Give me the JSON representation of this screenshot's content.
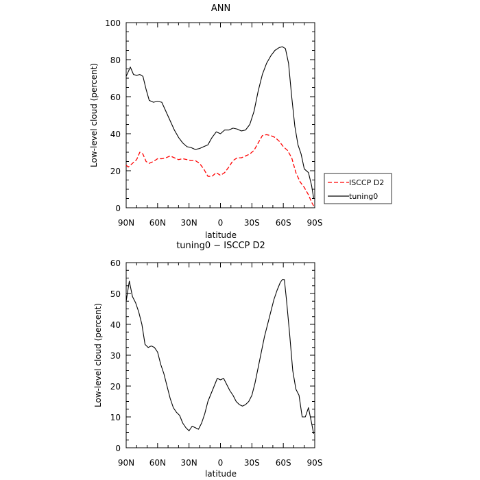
{
  "chart_data": [
    {
      "type": "line",
      "title": "ANN",
      "xlabel": "latitude",
      "ylabel": "Low-level cloud (percent)",
      "x_tick_labels": [
        "90N",
        "60N",
        "30N",
        "0",
        "30S",
        "60S",
        "90S"
      ],
      "xlim": [
        90,
        -90
      ],
      "ylim": [
        0,
        100
      ],
      "y_ticks": [
        0,
        20,
        40,
        60,
        80,
        100
      ],
      "legend_placement": "right",
      "series": [
        {
          "name": "ISCCP D2",
          "color": "#ff0000",
          "style": "dashed",
          "x": [
            90,
            88,
            84,
            80,
            77,
            74,
            71,
            68,
            64,
            60,
            56,
            52,
            48,
            44,
            40,
            36,
            32,
            28,
            24,
            20,
            16,
            12,
            8,
            4,
            0,
            -4,
            -8,
            -12,
            -16,
            -20,
            -24,
            -28,
            -32,
            -36,
            -40,
            -44,
            -48,
            -52,
            -56,
            -60,
            -64,
            -68,
            -72,
            -76,
            -80,
            -84,
            -87,
            -89
          ],
          "y": [
            23,
            22,
            24,
            26,
            30,
            29,
            25,
            24,
            25,
            26.5,
            26.5,
            27,
            28,
            27,
            26,
            26.5,
            26,
            25.5,
            25.5,
            24,
            21,
            17,
            17,
            19,
            17.5,
            19,
            22,
            25.5,
            27,
            27,
            28,
            29,
            31,
            35,
            39,
            39.5,
            39,
            38,
            36,
            33,
            31,
            27,
            19,
            14,
            11,
            7,
            3,
            1
          ]
        },
        {
          "name": "tuning0",
          "color": "#000000",
          "style": "solid",
          "x": [
            90,
            86,
            83,
            80,
            77,
            74,
            71,
            68,
            64,
            60,
            56,
            52,
            48,
            44,
            40,
            36,
            32,
            28,
            24,
            20,
            16,
            12,
            8,
            4,
            0,
            -4,
            -8,
            -12,
            -16,
            -20,
            -24,
            -28,
            -32,
            -36,
            -40,
            -44,
            -48,
            -52,
            -56,
            -59,
            -62,
            -65,
            -68,
            -71,
            -74,
            -77,
            -80,
            -84,
            -87,
            -89
          ],
          "y": [
            71,
            76,
            72,
            71.5,
            72,
            71,
            64,
            58,
            57,
            57.5,
            57,
            52,
            47,
            42,
            38,
            35,
            33,
            32.5,
            31.5,
            32,
            33,
            34,
            38,
            41,
            40,
            42,
            42,
            43,
            42.5,
            41.5,
            42,
            45,
            52,
            63,
            72,
            78,
            82,
            85,
            86.5,
            87,
            86,
            78,
            60,
            44,
            34,
            29,
            21,
            19,
            12,
            5
          ]
        }
      ]
    },
    {
      "type": "line",
      "title": "tuning0 − ISCCP D2",
      "xlabel": "latitude",
      "ylabel": "Low-level cloud (percent)",
      "x_tick_labels": [
        "90N",
        "60N",
        "30N",
        "0",
        "30S",
        "60S",
        "90S"
      ],
      "xlim": [
        90,
        -90
      ],
      "ylim": [
        0,
        60
      ],
      "y_ticks": [
        0,
        10,
        20,
        30,
        40,
        50,
        60
      ],
      "series": [
        {
          "color": "#000000",
          "style": "solid",
          "x": [
            90,
            87,
            84,
            81,
            78,
            75,
            72,
            69,
            66,
            63,
            60,
            57,
            54,
            51,
            48,
            45,
            42,
            39,
            36,
            33,
            30,
            27,
            24,
            21,
            18,
            15,
            12,
            9,
            6,
            3,
            0,
            -3,
            -6,
            -9,
            -12,
            -15,
            -18,
            -21,
            -24,
            -27,
            -30,
            -33,
            -36,
            -39,
            -42,
            -45,
            -48,
            -51,
            -54,
            -57,
            -59,
            -61,
            -63,
            -66,
            -69,
            -72,
            -75,
            -78,
            -81,
            -84,
            -87,
            -89
          ],
          "y": [
            47.5,
            54,
            49,
            47,
            44,
            40,
            33.5,
            32.5,
            33,
            32.5,
            31,
            27,
            24,
            20,
            16,
            13,
            11.5,
            10.5,
            8,
            6.5,
            5.5,
            7,
            6.5,
            6,
            8,
            11,
            15,
            17.5,
            20,
            22.5,
            22,
            22.5,
            20.5,
            18.5,
            17,
            15,
            14,
            13.5,
            14,
            15,
            17,
            21,
            26,
            31,
            36,
            40,
            44,
            48,
            51,
            53.5,
            54.5,
            54.5,
            48,
            37,
            25,
            19,
            17,
            10,
            10,
            13,
            8,
            4.5
          ]
        }
      ]
    }
  ]
}
